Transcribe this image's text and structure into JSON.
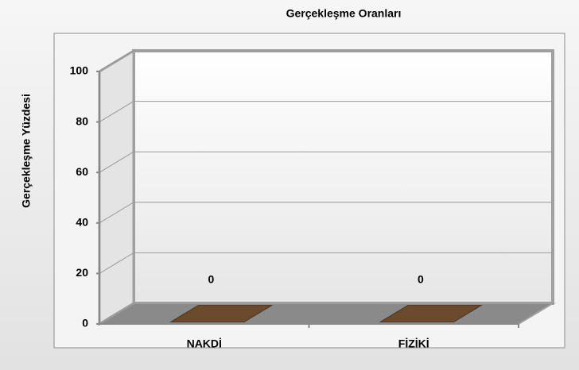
{
  "chart_data": {
    "type": "bar3d",
    "title": "Gerçekleşme Oranları",
    "y_label": "Gerçekleşme Yüzdesi",
    "categories": [
      "NAKDİ",
      "FİZİKİ"
    ],
    "values": [
      0,
      0
    ],
    "color": "#6b4a2e",
    "ylim": [
      0,
      100
    ],
    "yticks": [
      0,
      20,
      40,
      60,
      80,
      100
    ],
    "grid": true
  }
}
